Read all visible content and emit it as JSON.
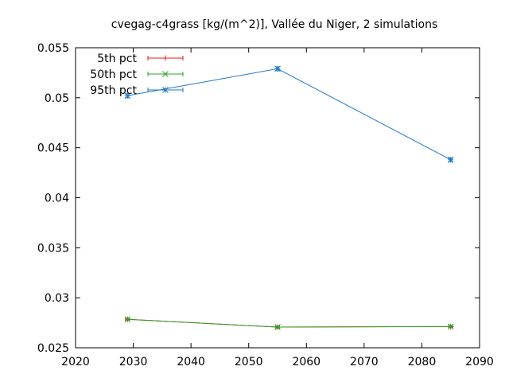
{
  "chart_data": {
    "type": "line",
    "title": "cvegag-c4grass [kg/(m^2)], Vallée du Niger, 2 simulations",
    "xlabel": "",
    "ylabel": "",
    "xlim": [
      2020,
      2090
    ],
    "ylim": [
      0.025,
      0.055
    ],
    "xticks": [
      2020,
      2030,
      2040,
      2050,
      2060,
      2070,
      2080,
      2090
    ],
    "yticks": [
      0.025,
      0.03,
      0.035,
      0.04,
      0.045,
      0.05,
      0.055
    ],
    "xtick_labels": [
      "2020",
      "2030",
      "2040",
      "2050",
      "2060",
      "2070",
      "2080",
      "2090"
    ],
    "ytick_labels": [
      "0.025",
      "0.03",
      "0.035",
      "0.04",
      "0.045",
      "0.05",
      "0.055"
    ],
    "grid": false,
    "legend_position": "top-left",
    "x": [
      2029,
      2055,
      2085
    ],
    "series": [
      {
        "name": "5th pct",
        "color": "#e41a1c",
        "marker": "plus",
        "values": [
          0.02785,
          0.02707,
          0.02712
        ],
        "err_low": [
          0.02775,
          0.02697,
          0.02702
        ],
        "err_high": [
          0.02795,
          0.02717,
          0.02722
        ]
      },
      {
        "name": "50th pct",
        "color": "#2ca02c",
        "marker": "cross",
        "values": [
          0.02785,
          0.02707,
          0.02712
        ],
        "err_low": [
          0.02775,
          0.02697,
          0.02702
        ],
        "err_high": [
          0.02795,
          0.02717,
          0.02722
        ]
      },
      {
        "name": "95th pct",
        "color": "#1f77c4",
        "marker": "star",
        "values": [
          0.0502,
          0.0529,
          0.0438
        ],
        "err_low": [
          0.05,
          0.0527,
          0.0436
        ],
        "err_high": [
          0.0504,
          0.0531,
          0.044
        ]
      }
    ]
  }
}
